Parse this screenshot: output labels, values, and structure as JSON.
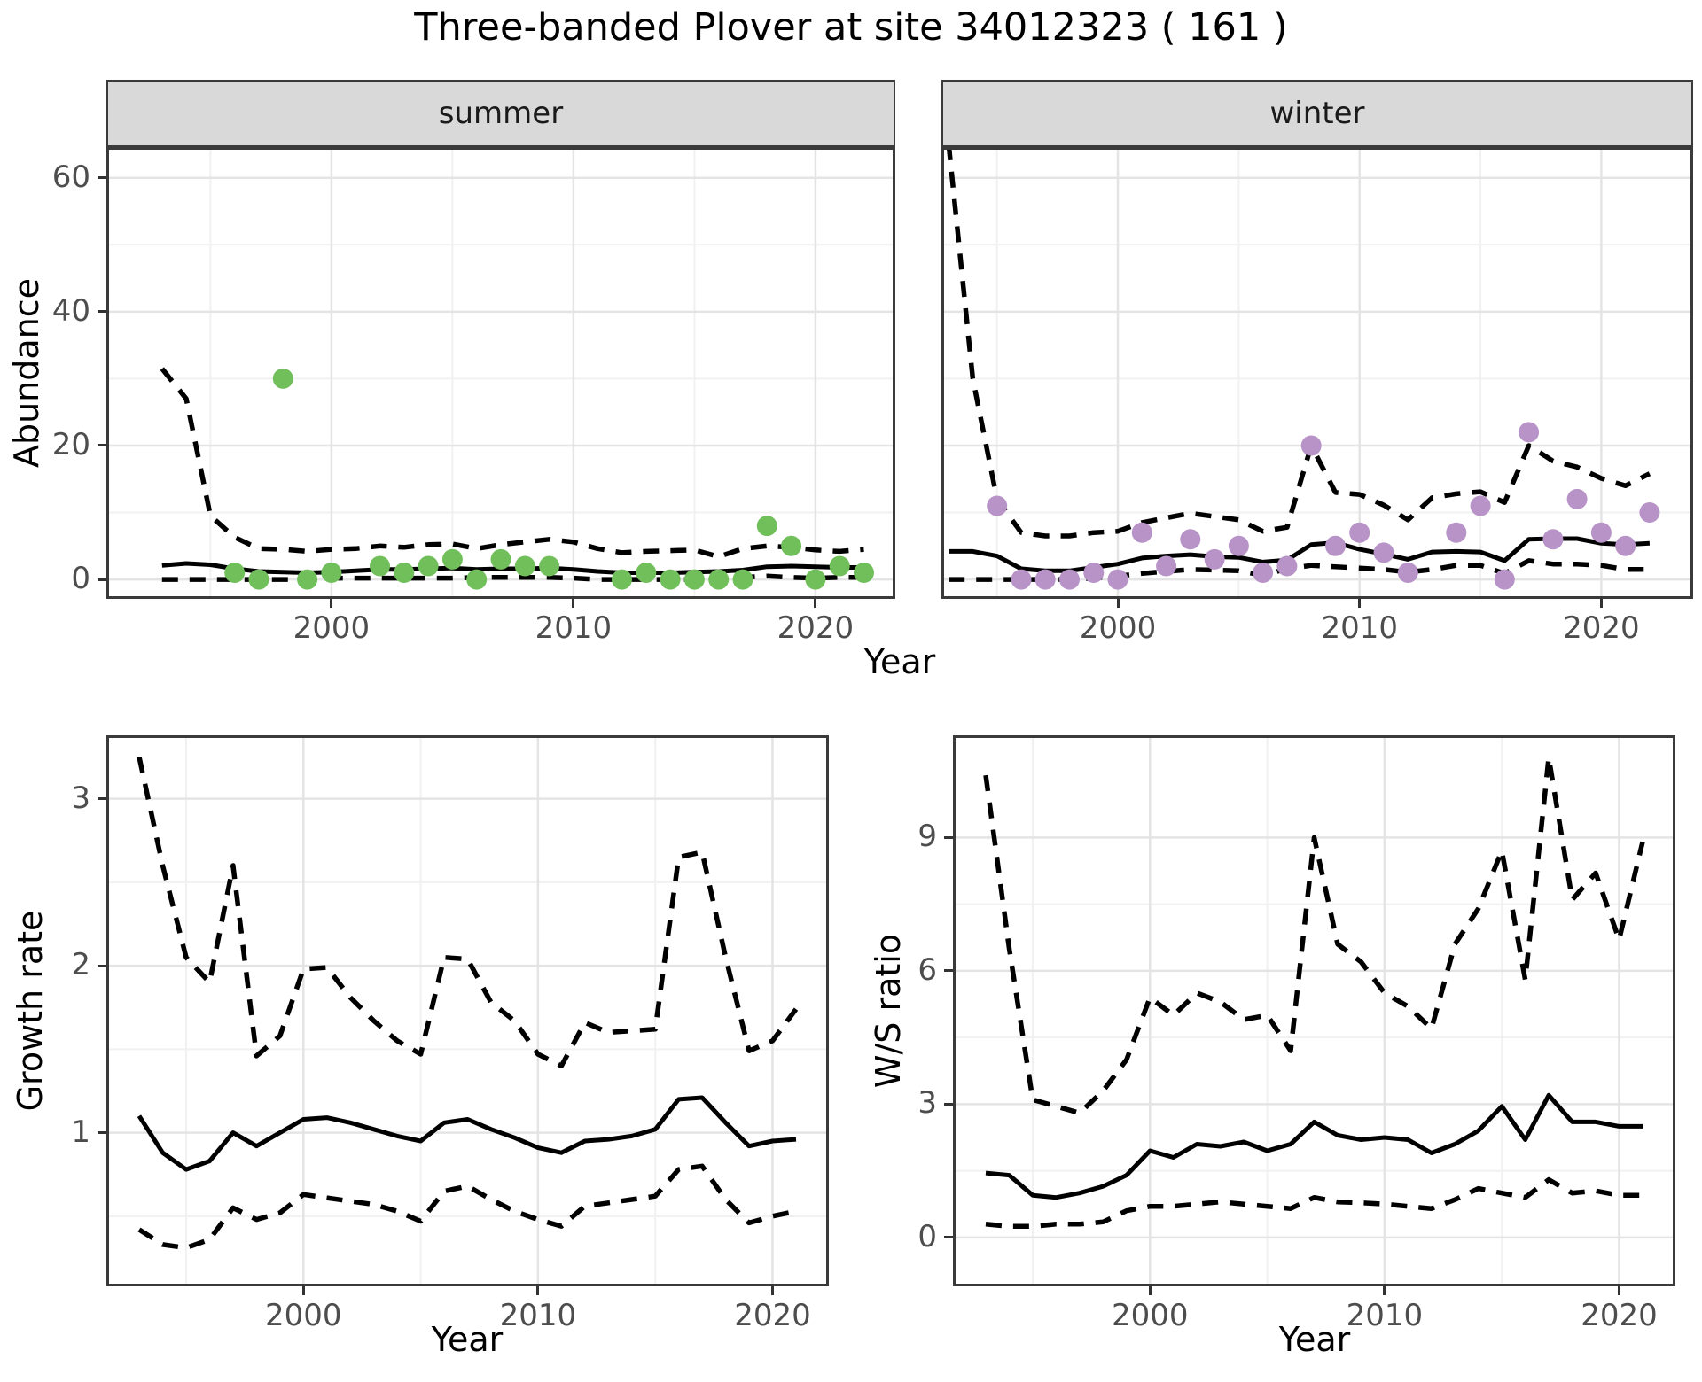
{
  "title": "Three-banded Plover at site 34012323 ( 161 )",
  "colors": {
    "summer_point": "#71bf5b",
    "winter_point": "#b793c8",
    "line": "#000000",
    "strip_bg": "#d9d9d9",
    "panel_border": "#3a3a3a",
    "grid_major": "#e4e4e4",
    "grid_minor": "#f1f1f1",
    "axis_text": "#4d4d4d",
    "axis_title": "#000000",
    "background": "#ffffff"
  },
  "chart_data": {
    "type": "line+scatter",
    "figure_title": "Three-banded Plover at site 34012323 ( 161 )",
    "top": {
      "ylabel": "Abundance",
      "xlabel": "Year",
      "ylim": [
        -2.9,
        64.6
      ],
      "yticks": [
        0,
        20,
        40,
        60
      ],
      "yminor": [
        10,
        30,
        50
      ],
      "xticks": [
        2000,
        2010,
        2020
      ],
      "xminor": [
        1995,
        2005,
        2015
      ],
      "line_years": [
        1993,
        1994,
        1995,
        1996,
        1997,
        1998,
        1999,
        2000,
        2001,
        2002,
        2003,
        2004,
        2005,
        2006,
        2007,
        2008,
        2009,
        2010,
        2011,
        2012,
        2013,
        2014,
        2015,
        2016,
        2017,
        2018,
        2019,
        2020,
        2021,
        2022
      ],
      "facets": [
        {
          "label": "summer",
          "xlim": [
            1990.7,
            2023.3
          ],
          "points": {
            "years": [
              1996,
              1997,
              1998,
              1999,
              2000,
              2002,
              2003,
              2004,
              2005,
              2006,
              2007,
              2008,
              2009,
              2012,
              2013,
              2014,
              2015,
              2016,
              2017,
              2018,
              2019,
              2020,
              2021,
              2022
            ],
            "values": [
              1,
              0,
              30,
              0,
              1,
              2,
              1,
              2,
              3,
              0,
              3,
              2,
              2,
              0,
              1,
              0,
              0,
              0,
              0,
              8,
              5,
              0,
              2,
              1
            ]
          },
          "median": [
            2.1,
            2.4,
            2.2,
            1.6,
            1.2,
            1.1,
            1.0,
            1.1,
            1.3,
            1.5,
            1.5,
            1.6,
            1.7,
            1.5,
            1.6,
            1.6,
            1.7,
            1.5,
            1.2,
            1.0,
            1.0,
            1.0,
            1.1,
            1.2,
            1.4,
            1.9,
            2.0,
            1.9,
            1.8,
            1.8
          ],
          "upper": [
            31.5,
            27.0,
            9.5,
            6.3,
            4.6,
            4.5,
            4.2,
            4.5,
            4.6,
            5.0,
            4.8,
            5.2,
            5.3,
            4.6,
            5.2,
            5.6,
            6.0,
            5.6,
            4.6,
            4.0,
            4.2,
            4.3,
            4.4,
            3.4,
            4.6,
            5.0,
            4.8,
            4.4,
            4.2,
            4.5
          ],
          "lower": [
            0,
            0,
            0,
            0,
            0,
            0,
            0,
            0.2,
            0.2,
            0.2,
            0.2,
            0.2,
            0.2,
            0.3,
            0.3,
            0.3,
            0.3,
            0.2,
            0,
            0,
            0,
            0,
            0,
            0,
            0.3,
            0.5,
            0.3,
            0.2,
            0.3,
            0.3
          ]
        },
        {
          "label": "winter",
          "xlim": [
            1992.7,
            2023.8
          ],
          "points": {
            "years": [
              1995,
              1996,
              1997,
              1998,
              1999,
              2000,
              2001,
              2002,
              2003,
              2004,
              2005,
              2006,
              2007,
              2008,
              2009,
              2010,
              2011,
              2012,
              2014,
              2015,
              2016,
              2017,
              2018,
              2019,
              2020,
              2021,
              2022
            ],
            "values": [
              11,
              0,
              0,
              0,
              1,
              0,
              7,
              2,
              6,
              3,
              5,
              1,
              2,
              20,
              5,
              7,
              4,
              1,
              7,
              11,
              0,
              22,
              6,
              12,
              7,
              5,
              10
            ]
          },
          "median": [
            4.2,
            4.2,
            3.5,
            1.6,
            1.3,
            1.3,
            1.8,
            2.3,
            3.2,
            3.5,
            3.7,
            3.4,
            3.3,
            2.6,
            2.9,
            5.2,
            5.5,
            4.5,
            3.8,
            3.0,
            4.1,
            4.2,
            4.1,
            2.8,
            6.0,
            6.1,
            6.1,
            5.4,
            5.2,
            5.4
          ],
          "upper": [
            65,
            30,
            12,
            7,
            6.5,
            6.5,
            7,
            7.2,
            8.5,
            9.2,
            9.9,
            9.4,
            8.9,
            7.2,
            7.8,
            20,
            13,
            12.7,
            11.1,
            8.9,
            12.2,
            12.8,
            13.1,
            11.5,
            20,
            17.7,
            16.8,
            15.1,
            14,
            15.8
          ],
          "lower": [
            0,
            0,
            0,
            0,
            0,
            0,
            0.2,
            0.5,
            0.9,
            1.2,
            1.5,
            1.4,
            1.3,
            0.6,
            1.6,
            2.1,
            1.9,
            1.7,
            1.5,
            1.1,
            1.5,
            2.1,
            2.1,
            0.9,
            2.8,
            2.3,
            2.3,
            2.1,
            1.5,
            1.5
          ]
        }
      ]
    },
    "bottom_left": {
      "ylabel": "Growth rate",
      "xlabel": "Year",
      "xlim": [
        1991.6,
        2022.4
      ],
      "ylim": [
        0.08,
        3.38
      ],
      "yticks": [
        1,
        2,
        3
      ],
      "yminor": [
        0.5,
        1.5,
        2.5
      ],
      "xticks": [
        2000,
        2010,
        2020
      ],
      "xminor": [
        1995,
        2005,
        2015
      ],
      "years": [
        1993,
        1994,
        1995,
        1996,
        1997,
        1998,
        1999,
        2000,
        2001,
        2002,
        2003,
        2004,
        2005,
        2006,
        2007,
        2008,
        2009,
        2010,
        2011,
        2012,
        2013,
        2014,
        2015,
        2016,
        2017,
        2018,
        2019,
        2020,
        2021
      ],
      "median": [
        1.1,
        0.88,
        0.78,
        0.83,
        1.0,
        0.92,
        1.0,
        1.08,
        1.09,
        1.06,
        1.02,
        0.98,
        0.95,
        1.06,
        1.08,
        1.02,
        0.97,
        0.91,
        0.88,
        0.95,
        0.96,
        0.98,
        1.02,
        1.2,
        1.21,
        1.06,
        0.92,
        0.95,
        0.96
      ],
      "upper": [
        3.25,
        2.6,
        2.05,
        1.9,
        2.6,
        1.46,
        1.58,
        1.98,
        1.99,
        1.81,
        1.67,
        1.55,
        1.47,
        2.05,
        2.04,
        1.78,
        1.67,
        1.47,
        1.4,
        1.66,
        1.6,
        1.61,
        1.62,
        2.65,
        2.68,
        2.05,
        1.49,
        1.55,
        1.74
      ],
      "lower": [
        0.42,
        0.33,
        0.31,
        0.36,
        0.55,
        0.48,
        0.52,
        0.63,
        0.61,
        0.59,
        0.57,
        0.53,
        0.47,
        0.65,
        0.68,
        0.6,
        0.53,
        0.48,
        0.44,
        0.56,
        0.58,
        0.6,
        0.62,
        0.78,
        0.8,
        0.6,
        0.46,
        0.5,
        0.53
      ]
    },
    "bottom_right": {
      "ylabel": "W/S ratio",
      "xlabel": "Year",
      "xlim": [
        1991.6,
        2022.4
      ],
      "ylim": [
        -1.1,
        11.3
      ],
      "yticks": [
        0,
        3,
        6,
        9
      ],
      "yminor": [
        1.5,
        4.5,
        7.5
      ],
      "xticks": [
        2000,
        2010,
        2020
      ],
      "xminor": [
        1995,
        2005,
        2015
      ],
      "years": [
        1993,
        1994,
        1995,
        1996,
        1997,
        1998,
        1999,
        2000,
        2001,
        2002,
        2003,
        2004,
        2005,
        2006,
        2007,
        2008,
        2009,
        2010,
        2011,
        2012,
        2013,
        2014,
        2015,
        2016,
        2017,
        2018,
        2019,
        2020,
        2021
      ],
      "median": [
        1.45,
        1.4,
        0.95,
        0.9,
        1.0,
        1.15,
        1.4,
        1.95,
        1.8,
        2.1,
        2.05,
        2.15,
        1.95,
        2.1,
        2.6,
        2.3,
        2.2,
        2.25,
        2.2,
        1.9,
        2.1,
        2.4,
        2.95,
        2.2,
        3.2,
        2.6,
        2.6,
        2.5,
        2.5
      ],
      "upper": [
        10.4,
        6.5,
        3.1,
        2.95,
        2.8,
        3.3,
        4.0,
        5.4,
        5.0,
        5.5,
        5.3,
        4.9,
        5.0,
        4.2,
        9.0,
        6.6,
        6.2,
        5.5,
        5.2,
        4.7,
        6.6,
        7.4,
        8.7,
        5.8,
        10.8,
        7.6,
        8.2,
        6.7,
        8.9
      ],
      "lower": [
        0.3,
        0.25,
        0.25,
        0.3,
        0.3,
        0.35,
        0.6,
        0.7,
        0.7,
        0.75,
        0.8,
        0.75,
        0.7,
        0.65,
        0.9,
        0.8,
        0.78,
        0.75,
        0.7,
        0.65,
        0.85,
        1.1,
        1.0,
        0.9,
        1.3,
        1.0,
        1.05,
        0.95,
        0.95
      ]
    }
  }
}
